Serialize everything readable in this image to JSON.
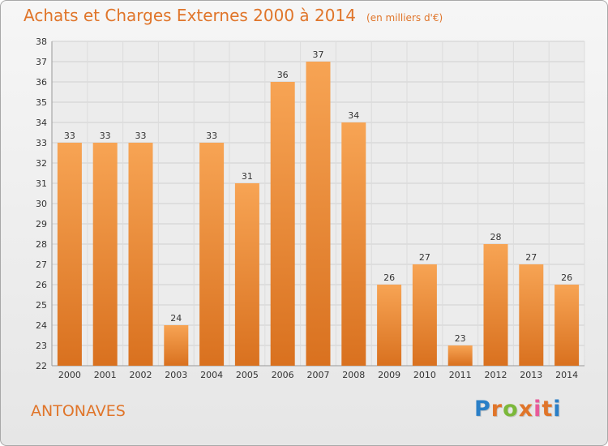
{
  "chart_data": {
    "type": "bar",
    "title": "Achats et Charges Externes 2000 à 2014",
    "unit_note": "(en milliers d'€)",
    "categories": [
      "2000",
      "2001",
      "2002",
      "2003",
      "2004",
      "2005",
      "2006",
      "2007",
      "2008",
      "2009",
      "2010",
      "2011",
      "2012",
      "2013",
      "2014"
    ],
    "values": [
      33,
      33,
      33,
      24,
      33,
      31,
      36,
      37,
      34,
      26,
      27,
      23,
      28,
      27,
      26
    ],
    "ylim": [
      22,
      38
    ],
    "yticks": [
      22,
      23,
      24,
      25,
      26,
      27,
      28,
      29,
      30,
      31,
      32,
      33,
      34,
      35,
      36,
      37,
      38
    ],
    "grid": true,
    "bar_color": "#ef8a35",
    "text_color": "#e0752a"
  },
  "commune": "ANTONAVES",
  "brand": {
    "letters": [
      "P",
      "r",
      "o",
      "x",
      "i",
      "t",
      "i"
    ],
    "colors": [
      "#2a7fc7",
      "#e0752a",
      "#7bb83a",
      "#e0752a",
      "#e85a9a",
      "#e0752a",
      "#2a7fc7"
    ]
  }
}
